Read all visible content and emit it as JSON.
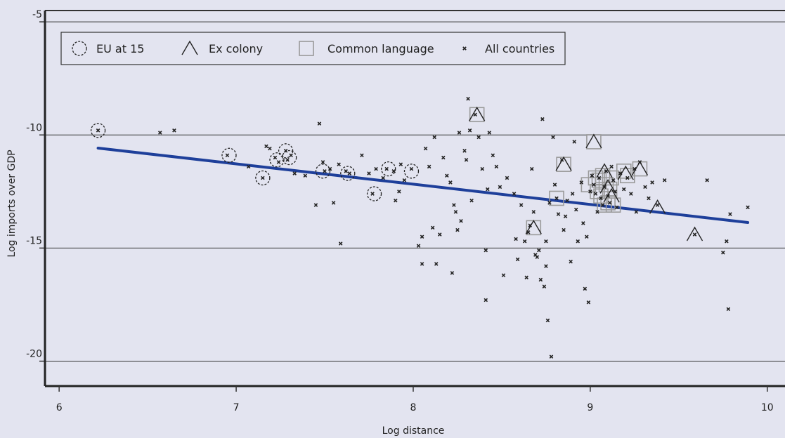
{
  "chart_data": {
    "type": "scatter",
    "xlabel": "Log distance",
    "ylabel": "Log imports over GDP",
    "xlim": [
      5.92,
      10.1
    ],
    "ylim": [
      -21.1,
      -4.5
    ],
    "xticks": [
      6,
      7,
      8,
      9,
      10
    ],
    "yticks": [
      -5,
      -10,
      -15,
      -20
    ],
    "grid": "horizontal",
    "legend_position": "top-left",
    "colors": {
      "background": "#e3e4f0",
      "points": "#222222",
      "marker_outline": "#222222",
      "language_marker": "#9a9a9a",
      "fit_line": "#1e3f9a"
    },
    "legend": [
      {
        "label": "EU at 15",
        "marker": "dashed-circle"
      },
      {
        "label": "Ex colony",
        "marker": "triangle"
      },
      {
        "label": "Common language",
        "marker": "square"
      },
      {
        "label": "All countries",
        "marker": "dot"
      }
    ],
    "fit_line": {
      "x": [
        6.22,
        9.89
      ],
      "y": [
        -10.58,
        -13.87
      ]
    },
    "series": [
      {
        "name": "All countries",
        "points": [
          [
            6.22,
            -9.8
          ],
          [
            6.57,
            -9.9
          ],
          [
            6.65,
            -9.8
          ],
          [
            6.95,
            -10.9
          ],
          [
            7.07,
            -11.4
          ],
          [
            7.15,
            -11.9
          ],
          [
            7.17,
            -10.5
          ],
          [
            7.19,
            -10.6
          ],
          [
            7.22,
            -11.0
          ],
          [
            7.24,
            -11.2
          ],
          [
            7.28,
            -10.7
          ],
          [
            7.29,
            -11.1
          ],
          [
            7.31,
            -10.9
          ],
          [
            7.33,
            -11.7
          ],
          [
            7.39,
            -11.8
          ],
          [
            7.45,
            -13.1
          ],
          [
            7.47,
            -9.5
          ],
          [
            7.49,
            -11.2
          ],
          [
            7.5,
            -11.6
          ],
          [
            7.53,
            -11.5
          ],
          [
            7.55,
            -13.0
          ],
          [
            7.58,
            -11.3
          ],
          [
            7.59,
            -14.8
          ],
          [
            7.62,
            -11.6
          ],
          [
            7.64,
            -11.7
          ],
          [
            7.71,
            -10.9
          ],
          [
            7.75,
            -11.7
          ],
          [
            7.77,
            -12.6
          ],
          [
            7.79,
            -11.5
          ],
          [
            7.83,
            -11.9
          ],
          [
            7.85,
            -11.5
          ],
          [
            7.89,
            -11.6
          ],
          [
            7.9,
            -12.9
          ],
          [
            7.92,
            -12.5
          ],
          [
            7.93,
            -11.3
          ],
          [
            7.95,
            -12.0
          ],
          [
            7.99,
            -11.5
          ],
          [
            8.03,
            -14.9
          ],
          [
            8.05,
            -15.7
          ],
          [
            8.05,
            -14.5
          ],
          [
            8.07,
            -10.6
          ],
          [
            8.09,
            -11.4
          ],
          [
            8.11,
            -14.1
          ],
          [
            8.12,
            -10.1
          ],
          [
            8.13,
            -15.7
          ],
          [
            8.15,
            -14.4
          ],
          [
            8.17,
            -11.0
          ],
          [
            8.19,
            -11.8
          ],
          [
            8.21,
            -12.1
          ],
          [
            8.22,
            -16.1
          ],
          [
            8.23,
            -13.1
          ],
          [
            8.24,
            -13.4
          ],
          [
            8.25,
            -14.2
          ],
          [
            8.26,
            -9.9
          ],
          [
            8.27,
            -13.8
          ],
          [
            8.29,
            -10.7
          ],
          [
            8.3,
            -11.1
          ],
          [
            8.31,
            -8.4
          ],
          [
            8.32,
            -9.8
          ],
          [
            8.33,
            -12.9
          ],
          [
            8.35,
            -9.1
          ],
          [
            8.37,
            -10.1
          ],
          [
            8.39,
            -11.5
          ],
          [
            8.41,
            -15.1
          ],
          [
            8.41,
            -17.3
          ],
          [
            8.42,
            -12.4
          ],
          [
            8.43,
            -9.9
          ],
          [
            8.45,
            -10.9
          ],
          [
            8.47,
            -11.4
          ],
          [
            8.49,
            -12.3
          ],
          [
            8.51,
            -16.2
          ],
          [
            8.53,
            -11.9
          ],
          [
            8.57,
            -12.6
          ],
          [
            8.58,
            -14.6
          ],
          [
            8.59,
            -15.5
          ],
          [
            8.61,
            -13.1
          ],
          [
            8.63,
            -14.7
          ],
          [
            8.64,
            -16.3
          ],
          [
            8.65,
            -14.3
          ],
          [
            8.66,
            -14.0
          ],
          [
            8.67,
            -11.5
          ],
          [
            8.68,
            -13.4
          ],
          [
            8.69,
            -15.3
          ],
          [
            8.7,
            -15.4
          ],
          [
            8.71,
            -15.1
          ],
          [
            8.72,
            -16.4
          ],
          [
            8.73,
            -9.3
          ],
          [
            8.74,
            -16.7
          ],
          [
            8.75,
            -15.8
          ],
          [
            8.75,
            -14.7
          ],
          [
            8.76,
            -18.2
          ],
          [
            8.77,
            -13.0
          ],
          [
            8.78,
            -19.8
          ],
          [
            8.79,
            -10.1
          ],
          [
            8.8,
            -12.2
          ],
          [
            8.81,
            -12.8
          ],
          [
            8.82,
            -13.5
          ],
          [
            8.84,
            -11.1
          ],
          [
            8.85,
            -14.2
          ],
          [
            8.86,
            -13.6
          ],
          [
            8.87,
            -12.9
          ],
          [
            8.89,
            -15.6
          ],
          [
            8.9,
            -12.6
          ],
          [
            8.91,
            -10.3
          ],
          [
            8.92,
            -13.3
          ],
          [
            8.93,
            -14.7
          ],
          [
            8.95,
            -12.1
          ],
          [
            8.96,
            -13.9
          ],
          [
            8.97,
            -16.8
          ],
          [
            8.98,
            -14.5
          ],
          [
            8.99,
            -17.4
          ],
          [
            9.0,
            -12.5
          ],
          [
            9.01,
            -11.8
          ],
          [
            9.02,
            -12.2
          ],
          [
            9.03,
            -12.6
          ],
          [
            9.04,
            -13.4
          ],
          [
            9.05,
            -11.9
          ],
          [
            9.06,
            -12.8
          ],
          [
            9.07,
            -13.1
          ],
          [
            9.08,
            -12.3
          ],
          [
            9.09,
            -11.6
          ],
          [
            9.1,
            -12.7
          ],
          [
            9.11,
            -13.0
          ],
          [
            9.12,
            -11.4
          ],
          [
            9.13,
            -12.0
          ],
          [
            9.14,
            -12.5
          ],
          [
            9.15,
            -13.2
          ],
          [
            9.17,
            -11.7
          ],
          [
            9.19,
            -12.4
          ],
          [
            9.21,
            -11.9
          ],
          [
            9.23,
            -12.6
          ],
          [
            9.25,
            -11.5
          ],
          [
            9.26,
            -13.4
          ],
          [
            9.28,
            -11.2
          ],
          [
            9.31,
            -12.3
          ],
          [
            9.33,
            -12.8
          ],
          [
            9.35,
            -12.1
          ],
          [
            9.38,
            -13.1
          ],
          [
            9.42,
            -12.0
          ],
          [
            9.59,
            -14.4
          ],
          [
            9.66,
            -12.0
          ],
          [
            9.75,
            -15.2
          ],
          [
            9.77,
            -14.7
          ],
          [
            9.78,
            -17.7
          ],
          [
            9.79,
            -13.5
          ],
          [
            9.89,
            -13.2
          ]
        ]
      },
      {
        "name": "EU at 15",
        "points": [
          [
            6.22,
            -9.8
          ],
          [
            6.96,
            -10.9
          ],
          [
            7.15,
            -11.9
          ],
          [
            7.23,
            -11.1
          ],
          [
            7.28,
            -10.7
          ],
          [
            7.3,
            -11.0
          ],
          [
            7.49,
            -11.6
          ],
          [
            7.63,
            -11.7
          ],
          [
            7.78,
            -12.6
          ],
          [
            7.86,
            -11.5
          ],
          [
            7.99,
            -11.6
          ]
        ]
      },
      {
        "name": "Ex colony",
        "points": [
          [
            8.36,
            -9.1
          ],
          [
            8.68,
            -14.1
          ],
          [
            8.85,
            -11.3
          ],
          [
            9.02,
            -10.3
          ],
          [
            9.08,
            -11.6
          ],
          [
            9.1,
            -12.3
          ],
          [
            9.12,
            -12.7
          ],
          [
            9.2,
            -11.7
          ],
          [
            9.28,
            -11.5
          ],
          [
            9.38,
            -13.2
          ],
          [
            9.59,
            -14.4
          ]
        ]
      },
      {
        "name": "Common language",
        "points": [
          [
            8.36,
            -9.1
          ],
          [
            8.68,
            -14.1
          ],
          [
            8.81,
            -12.8
          ],
          [
            8.85,
            -11.3
          ],
          [
            8.99,
            -12.2
          ],
          [
            9.02,
            -10.3
          ],
          [
            9.03,
            -11.9
          ],
          [
            9.04,
            -12.5
          ],
          [
            9.05,
            -12.0
          ],
          [
            9.06,
            -12.7
          ],
          [
            9.07,
            -11.8
          ],
          [
            9.08,
            -13.1
          ],
          [
            9.09,
            -12.2
          ],
          [
            9.1,
            -13.0
          ],
          [
            9.11,
            -12.4
          ],
          [
            9.12,
            -11.9
          ],
          [
            9.13,
            -13.1
          ],
          [
            9.19,
            -11.6
          ],
          [
            9.21,
            -11.8
          ],
          [
            9.28,
            -11.5
          ]
        ]
      }
    ]
  }
}
